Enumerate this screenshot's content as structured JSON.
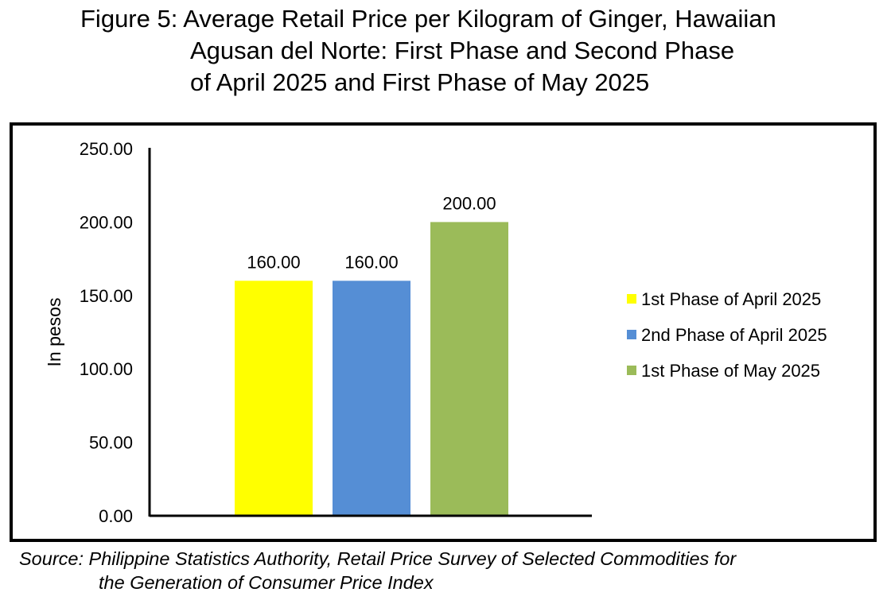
{
  "title_lines": [
    "Figure 5: Average Retail Price per Kilogram of Ginger, Hawaiian",
    "Agusan del Norte: First Phase and Second Phase",
    "of April 2025 and First Phase of May 2025"
  ],
  "source_lines": [
    "Source: Philippine Statistics Authority, Retail Price Survey of Selected Commodities for",
    "the Generation of Consumer Price Index"
  ],
  "colors": {
    "background": "#ffffff",
    "frame": "#000000"
  },
  "chart_data": {
    "type": "bar",
    "title": "",
    "xlabel": "",
    "ylabel": "In pesos",
    "ylim": [
      0,
      250
    ],
    "yticks": [
      0,
      50,
      100,
      150,
      200,
      250
    ],
    "ytick_labels": [
      "0.00",
      "50.00",
      "100.00",
      "150.00",
      "200.00",
      "250.00"
    ],
    "grid": false,
    "legend_position": "right",
    "series": [
      {
        "name": "1st Phase of April 2025",
        "values": [
          160
        ],
        "value_label": "160.00",
        "color": "#ffff00"
      },
      {
        "name": "2nd Phase of April 2025",
        "values": [
          160
        ],
        "value_label": "160.00",
        "color": "#558ed5"
      },
      {
        "name": "1st Phase of May 2025",
        "values": [
          200
        ],
        "value_label": "200.00",
        "color": "#9bbb59"
      }
    ]
  }
}
